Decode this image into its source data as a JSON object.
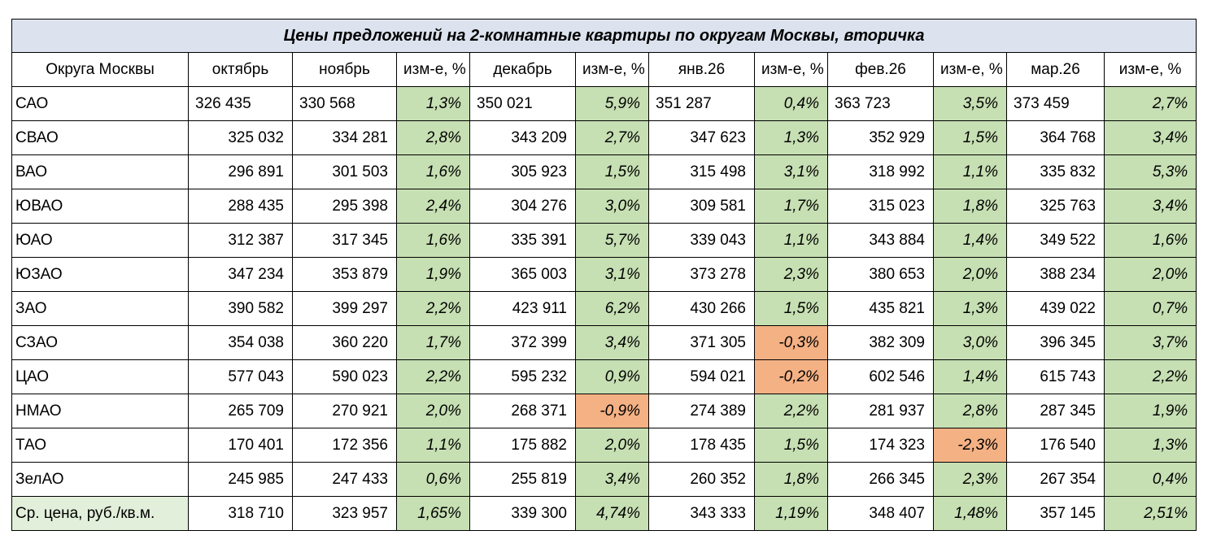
{
  "title": "Цены предложений на 2-комнатные квартиры по округам Москвы, вторичка",
  "headers": [
    "Округа Москвы",
    "октябрь",
    "ноябрь",
    "изм-е, %",
    "декабрь",
    "изм-е, %",
    "янв.26",
    "изм-е, %",
    "фев.26",
    "изм-е, %",
    "мар.26",
    "изм-е, %"
  ],
  "colors": {
    "positive": "#c6dfb3",
    "negative": "#f4b184",
    "title_bg": "#dce3ee",
    "avg_label_bg": "#e2efda"
  },
  "rows": [
    {
      "name": "САО",
      "oct": "326 435",
      "nov": "330 568",
      "c1": "1,3%",
      "dec": "350 021",
      "c2": "5,9%",
      "jan": "351 287",
      "c3": "0,4%",
      "feb": "363 723",
      "c4": "3,5%",
      "mar": "373 459",
      "c5": "2,7%"
    },
    {
      "name": "СВАО",
      "oct": "325 032",
      "nov": "334 281",
      "c1": "2,8%",
      "dec": "343 209",
      "c2": "2,7%",
      "jan": "347 623",
      "c3": "1,3%",
      "feb": "352 929",
      "c4": "1,5%",
      "mar": "364 768",
      "c5": "3,4%"
    },
    {
      "name": "ВАО",
      "oct": "296 891",
      "nov": "301 503",
      "c1": "1,6%",
      "dec": "305 923",
      "c2": "1,5%",
      "jan": "315 498",
      "c3": "3,1%",
      "feb": "318 992",
      "c4": "1,1%",
      "mar": "335 832",
      "c5": "5,3%"
    },
    {
      "name": "ЮВАО",
      "oct": "288 435",
      "nov": "295 398",
      "c1": "2,4%",
      "dec": "304 276",
      "c2": "3,0%",
      "jan": "309 581",
      "c3": "1,7%",
      "feb": "315 023",
      "c4": "1,8%",
      "mar": "325 763",
      "c5": "3,4%"
    },
    {
      "name": "ЮАО",
      "oct": "312 387",
      "nov": "317 345",
      "c1": "1,6%",
      "dec": "335 391",
      "c2": "5,7%",
      "jan": "339 043",
      "c3": "1,1%",
      "feb": "343 884",
      "c4": "1,4%",
      "mar": "349 522",
      "c5": "1,6%"
    },
    {
      "name": "ЮЗАО",
      "oct": "347 234",
      "nov": "353 879",
      "c1": "1,9%",
      "dec": "365 003",
      "c2": "3,1%",
      "jan": "373 278",
      "c3": "2,3%",
      "feb": "380 653",
      "c4": "2,0%",
      "mar": "388 234",
      "c5": "2,0%"
    },
    {
      "name": "ЗАО",
      "oct": "390 582",
      "nov": "399 297",
      "c1": "2,2%",
      "dec": "423 911",
      "c2": "6,2%",
      "jan": "430 266",
      "c3": "1,5%",
      "feb": "435 821",
      "c4": "1,3%",
      "mar": "439 022",
      "c5": "0,7%"
    },
    {
      "name": "СЗАО",
      "oct": "354 038",
      "nov": "360 220",
      "c1": "1,7%",
      "dec": "372 399",
      "c2": "3,4%",
      "jan": "371 305",
      "c3": "-0,3%",
      "feb": "382 309",
      "c4": "3,0%",
      "mar": "396 345",
      "c5": "3,7%"
    },
    {
      "name": "ЦАО",
      "oct": "577 043",
      "nov": "590 023",
      "c1": "2,2%",
      "dec": "595 232",
      "c2": "0,9%",
      "jan": "594 021",
      "c3": "-0,2%",
      "feb": "602 546",
      "c4": "1,4%",
      "mar": "615 743",
      "c5": "2,2%"
    },
    {
      "name": "НМАО",
      "oct": "265 709",
      "nov": "270 921",
      "c1": "2,0%",
      "dec": "268 371",
      "c2": "-0,9%",
      "jan": "274 389",
      "c3": "2,2%",
      "feb": "281 937",
      "c4": "2,8%",
      "mar": "287 345",
      "c5": "1,9%"
    },
    {
      "name": "ТАО",
      "oct": "170 401",
      "nov": "172 356",
      "c1": "1,1%",
      "dec": "175 882",
      "c2": "2,0%",
      "jan": "178 435",
      "c3": "1,5%",
      "feb": "174 323",
      "c4": "-2,3%",
      "mar": "176 540",
      "c5": "1,3%"
    },
    {
      "name": "ЗелАО",
      "oct": "245 985",
      "nov": "247 433",
      "c1": "0,6%",
      "dec": "255 819",
      "c2": "3,4%",
      "jan": "260 352",
      "c3": "1,8%",
      "feb": "266 345",
      "c4": "2,3%",
      "mar": "267 354",
      "c5": "0,4%"
    }
  ],
  "average": {
    "name": "Ср. цена, руб./кв.м.",
    "oct": "318 710",
    "nov": "323 957",
    "c1": "1,65%",
    "dec": "339 300",
    "c2": "4,74%",
    "jan": "343 333",
    "c3": "1,19%",
    "feb": "348 407",
    "c4": "1,48%",
    "mar": "357 145",
    "c5": "2,51%"
  }
}
